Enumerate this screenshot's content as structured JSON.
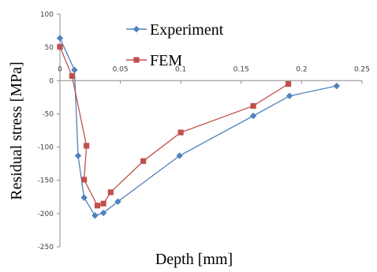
{
  "chart_data": {
    "type": "line",
    "xlabel": "Depth [mm]",
    "ylabel": "Residual stress [MPa]",
    "xlim": [
      0,
      0.25
    ],
    "ylim": [
      -250,
      100
    ],
    "x_ticks": [
      "0",
      "0.05",
      "0.1",
      "0.15",
      "0.2",
      "0.25"
    ],
    "y_ticks": [
      "100",
      "50",
      "0",
      "-50",
      "-100",
      "-150",
      "-200",
      "-250"
    ],
    "x_tick_values": [
      0,
      0.05,
      0.1,
      0.15,
      0.2,
      0.25
    ],
    "y_tick_values": [
      100,
      50,
      0,
      -50,
      -100,
      -150,
      -200,
      -250
    ],
    "grid": false,
    "legend_position": "top-center",
    "series": [
      {
        "name": "Experiment",
        "color": "#4f81bd",
        "marker": "diamond",
        "points": [
          [
            0.0,
            64
          ],
          [
            0.012,
            16
          ],
          [
            0.015,
            -113
          ],
          [
            0.02,
            -176
          ],
          [
            0.029,
            -203
          ],
          [
            0.036,
            -199
          ],
          [
            0.048,
            -182
          ],
          [
            0.099,
            -113
          ],
          [
            0.16,
            -53
          ],
          [
            0.19,
            -23
          ],
          [
            0.229,
            -8
          ]
        ]
      },
      {
        "name": "FEM",
        "color": "#c0504d",
        "marker": "square",
        "points": [
          [
            0.0,
            51
          ],
          [
            0.01,
            7
          ],
          [
            0.022,
            -98
          ],
          [
            0.02,
            -149
          ],
          [
            0.031,
            -188
          ],
          [
            0.036,
            -185
          ],
          [
            0.042,
            -168
          ],
          [
            0.069,
            -121
          ],
          [
            0.1,
            -78
          ],
          [
            0.16,
            -38
          ],
          [
            0.189,
            -5
          ]
        ]
      }
    ]
  }
}
